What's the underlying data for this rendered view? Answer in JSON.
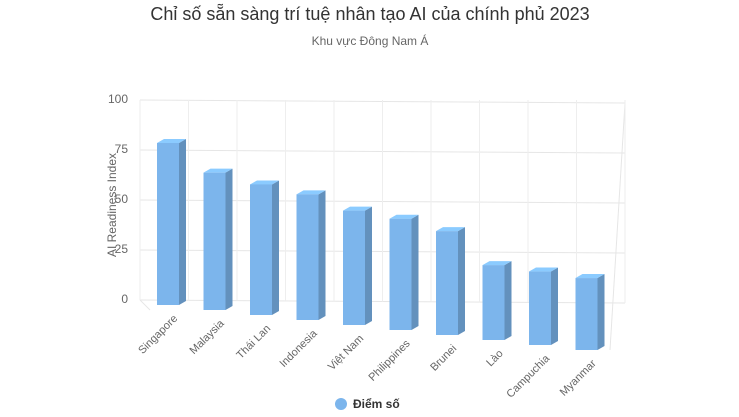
{
  "chart_data": {
    "type": "bar3d",
    "title": "Chỉ số sẵn sàng trí tuệ nhân tạo AI của chính phủ 2023",
    "subtitle": "Khu vực Đông Nam Á",
    "y_axis_label": "AI Readiness Index",
    "categories": [
      "Singapore",
      "Malaysia",
      "Thái Lan",
      "Indonesia",
      "Việt Nam",
      "Philippines",
      "Brunei",
      "Lào",
      "Campuchia",
      "Myanmar"
    ],
    "series": [
      {
        "name": "Điểm số",
        "color": "#7cb5ec",
        "values": [
          81,
          68,
          64,
          61,
          55,
          53,
          49,
          35,
          34,
          33
        ]
      }
    ],
    "ylim": [
      0,
      100
    ],
    "yticks": [
      0,
      25,
      50,
      75,
      100
    ],
    "grid": true,
    "legend": "bottom"
  }
}
